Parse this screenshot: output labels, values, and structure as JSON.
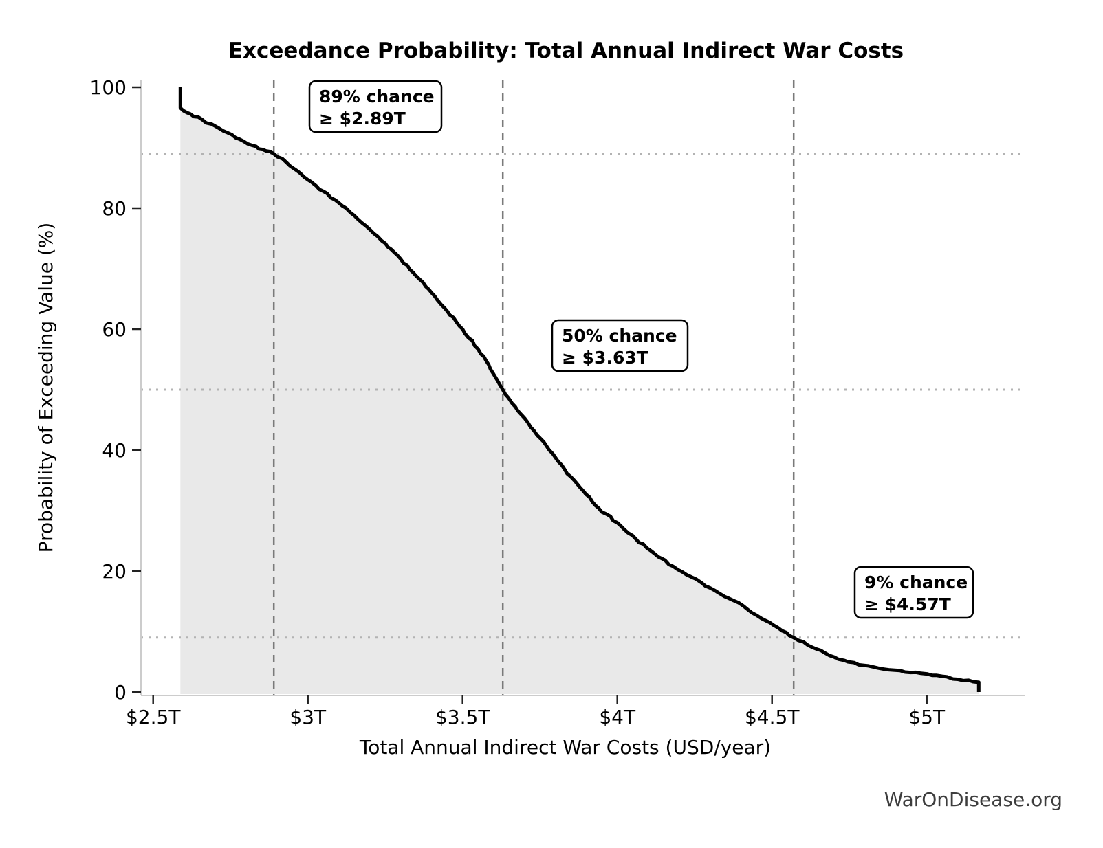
{
  "watermark": "WarOnDisease.org",
  "chart_data": {
    "type": "line",
    "title": "Exceedance Probability: Total Annual Indirect War Costs",
    "xlabel": "Total Annual Indirect War Costs (USD/year)",
    "ylabel": "Probability of Exceeding Value (%)",
    "xlim": [
      2.46,
      5.32
    ],
    "ylim": [
      0,
      100
    ],
    "x_unit": "trillion USD per year",
    "x_tick_values": [
      2.5,
      3.0,
      3.5,
      4.0,
      4.5,
      5.0
    ],
    "x_tick_labels": [
      "$2.5T",
      "$3T",
      "$3.5T",
      "$4T",
      "$4.5T",
      "$5T"
    ],
    "y_tick_values": [
      0,
      20,
      40,
      60,
      80,
      100
    ],
    "y_tick_labels": [
      "0",
      "20",
      "40",
      "60",
      "80",
      "100"
    ],
    "grid": "threshold guide lines only",
    "legend": "none",
    "fill_under_curve": true,
    "series": [
      {
        "name": "exceedance-probability",
        "points": [
          [
            2.588,
            100.0
          ],
          [
            2.588,
            96.6
          ],
          [
            2.62,
            95.6
          ],
          [
            2.66,
            94.6
          ],
          [
            2.7,
            93.6
          ],
          [
            2.74,
            92.5
          ],
          [
            2.78,
            91.4
          ],
          [
            2.82,
            90.4
          ],
          [
            2.855,
            89.7
          ],
          [
            2.89,
            89.0
          ],
          [
            2.93,
            87.6
          ],
          [
            2.965,
            86.2
          ],
          [
            3.0,
            84.7
          ],
          [
            3.05,
            82.8
          ],
          [
            3.1,
            80.9
          ],
          [
            3.15,
            78.8
          ],
          [
            3.2,
            76.5
          ],
          [
            3.25,
            74.2
          ],
          [
            3.3,
            71.6
          ],
          [
            3.35,
            68.8
          ],
          [
            3.4,
            66.0
          ],
          [
            3.45,
            63.0
          ],
          [
            3.5,
            60.0
          ],
          [
            3.55,
            56.7
          ],
          [
            3.59,
            53.4
          ],
          [
            3.63,
            50.0
          ],
          [
            3.67,
            47.2
          ],
          [
            3.72,
            43.8
          ],
          [
            3.78,
            40.0
          ],
          [
            3.83,
            36.8
          ],
          [
            3.88,
            33.8
          ],
          [
            3.94,
            30.4
          ],
          [
            4.0,
            28.0
          ],
          [
            4.06,
            25.3
          ],
          [
            4.12,
            22.9
          ],
          [
            4.18,
            20.8
          ],
          [
            4.24,
            19.0
          ],
          [
            4.3,
            17.2
          ],
          [
            4.36,
            15.5
          ],
          [
            4.42,
            13.7
          ],
          [
            4.48,
            11.8
          ],
          [
            4.52,
            10.6
          ],
          [
            4.57,
            9.0
          ],
          [
            4.63,
            7.4
          ],
          [
            4.7,
            5.8
          ],
          [
            4.78,
            4.5
          ],
          [
            4.86,
            3.8
          ],
          [
            4.93,
            3.3
          ],
          [
            5.0,
            3.0
          ],
          [
            5.05,
            2.6
          ],
          [
            5.1,
            2.1
          ],
          [
            5.15,
            1.7
          ],
          [
            5.168,
            1.6
          ],
          [
            5.168,
            0.0
          ]
        ]
      }
    ],
    "annotations": [
      {
        "text_line1": "89% chance",
        "text_line2": "≥ $2.89T",
        "x_value": 2.89,
        "probability_pct": 89
      },
      {
        "text_line1": "50% chance",
        "text_line2": "≥ $3.63T",
        "x_value": 3.63,
        "probability_pct": 50
      },
      {
        "text_line1": "9% chance",
        "text_line2": "≥ $4.57T",
        "x_value": 4.57,
        "probability_pct": 9
      }
    ],
    "colors": {
      "curve": "#000000",
      "area_fill": "#e9e9e9",
      "threshold_vline": "#7a7a7a",
      "probability_hline": "#b3b3b3",
      "spine": "#cccccc",
      "tick_mark": "#222222",
      "annotation_border": "#000000",
      "annotation_bg": "#ffffff",
      "watermark": "#3d3d3d"
    }
  }
}
